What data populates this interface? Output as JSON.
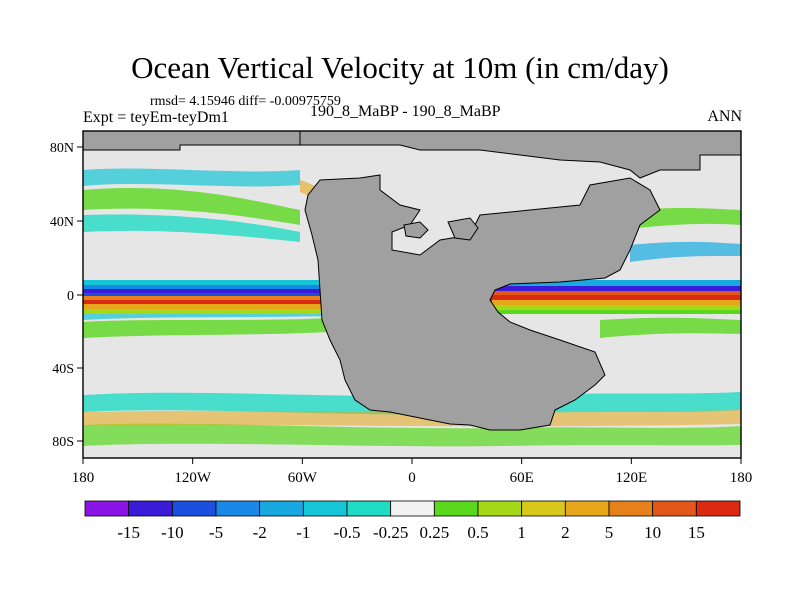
{
  "title": "Ocean Vertical Velocity at 10m (in cm/day)",
  "stats": "rmsd= 4.15946 diff= -0.00975759",
  "left_label": "Expt = teyEm-teyDm1",
  "center_label": "190_8_MaBP - 190_8_MaBP",
  "right_label": "ANN",
  "map": {
    "lon_labels": [
      "180",
      "120W",
      "60W",
      "0",
      "60E",
      "120E",
      "180"
    ],
    "lat_labels": [
      "80N",
      "40N",
      "0",
      "40S",
      "80S"
    ],
    "land_color": "#a0a0a0",
    "zero_color": "#e6e6e6"
  },
  "colorbar": {
    "levels": [
      "-15",
      "-10",
      "-5",
      "-2",
      "-1",
      "-0.5",
      "-0.25",
      "0.25",
      "0.5",
      "1",
      "2",
      "5",
      "10",
      "15"
    ],
    "colors": [
      "#8a15e6",
      "#3a1bd8",
      "#1a4fe0",
      "#1a88e6",
      "#17a9e0",
      "#17c6d6",
      "#20dcc4",
      "#f2f2f2",
      "#5ad81e",
      "#a6d81a",
      "#d8c81a",
      "#e6a81a",
      "#e6801a",
      "#e2561a",
      "#dc2a12"
    ]
  }
}
